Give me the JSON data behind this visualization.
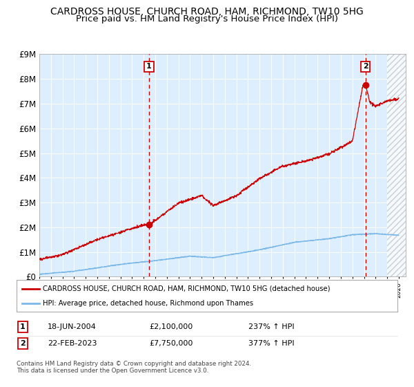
{
  "title": "CARDROSS HOUSE, CHURCH ROAD, HAM, RICHMOND, TW10 5HG",
  "subtitle": "Price paid vs. HM Land Registry's House Price Index (HPI)",
  "ylim": [
    0,
    9000000
  ],
  "yticks": [
    0,
    1000000,
    2000000,
    3000000,
    4000000,
    5000000,
    6000000,
    7000000,
    8000000,
    9000000
  ],
  "ytick_labels": [
    "£0",
    "£1M",
    "£2M",
    "£3M",
    "£4M",
    "£5M",
    "£6M",
    "£7M",
    "£8M",
    "£9M"
  ],
  "background_color": "#ddeeff",
  "hpi_color": "#7ab8e8",
  "price_color": "#cc0000",
  "sale1_date_num": 2004.46,
  "sale1_price": 2100000,
  "sale2_date_num": 2023.13,
  "sale2_price": 7750000,
  "legend_line1": "CARDROSS HOUSE, CHURCH ROAD, HAM, RICHMOND, TW10 5HG (detached house)",
  "legend_line2": "HPI: Average price, detached house, Richmond upon Thames",
  "annotation1_date": "18-JUN-2004",
  "annotation1_price": "£2,100,000",
  "annotation1_hpi": "237% ↑ HPI",
  "annotation2_date": "22-FEB-2023",
  "annotation2_price": "£7,750,000",
  "annotation2_hpi": "377% ↑ HPI",
  "footer": "Contains HM Land Registry data © Crown copyright and database right 2024.\nThis data is licensed under the Open Government Licence v3.0.",
  "grid_color": "#ffffff",
  "title_fontsize": 10,
  "subtitle_fontsize": 9.5
}
